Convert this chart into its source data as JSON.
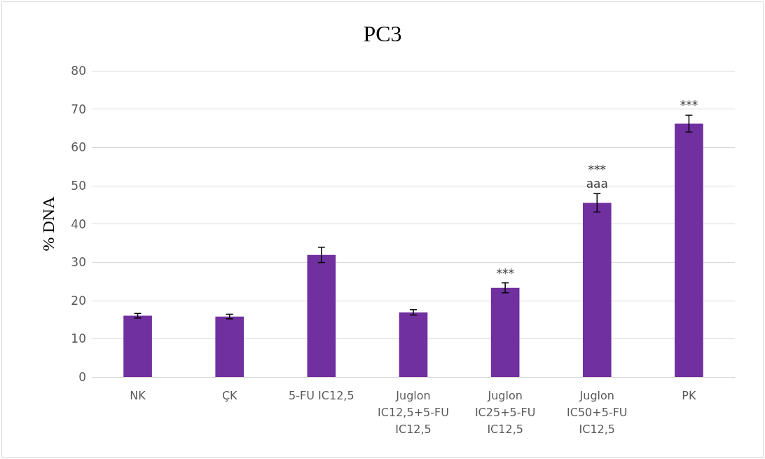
{
  "chart_data": {
    "type": "bar",
    "title": "PC3",
    "ylabel": "% DNA",
    "categories": [
      "NK",
      "ÇK",
      "5-FU IC12,5",
      "Juglon IC12,5+5-FU IC12,5",
      "Juglon IC25+5-FU IC12,5",
      "Juglon IC50+5-FU IC12,5",
      "PK"
    ],
    "values": [
      16.0,
      15.8,
      31.9,
      16.9,
      23.3,
      45.5,
      66.2
    ],
    "errors": [
      0.6,
      0.6,
      2.0,
      0.7,
      1.3,
      2.4,
      2.2
    ],
    "color": "#7030a0",
    "ylim": [
      0,
      80
    ],
    "yticks": [
      0,
      10,
      20,
      30,
      40,
      50,
      60,
      70,
      80
    ],
    "grid": "y",
    "annotations": [
      {
        "text": "***",
        "x": "Juglon IC25+5-FU IC12,5",
        "y": 23.3
      },
      {
        "text": "aaa",
        "x": "Juglon IC50+5-FU IC12,5",
        "y": 45.5
      },
      {
        "text": "***",
        "x": "Juglon IC50+5-FU IC12,5",
        "y": 45.5
      },
      {
        "text": "***",
        "x": "PK",
        "y": 66.2
      }
    ]
  }
}
